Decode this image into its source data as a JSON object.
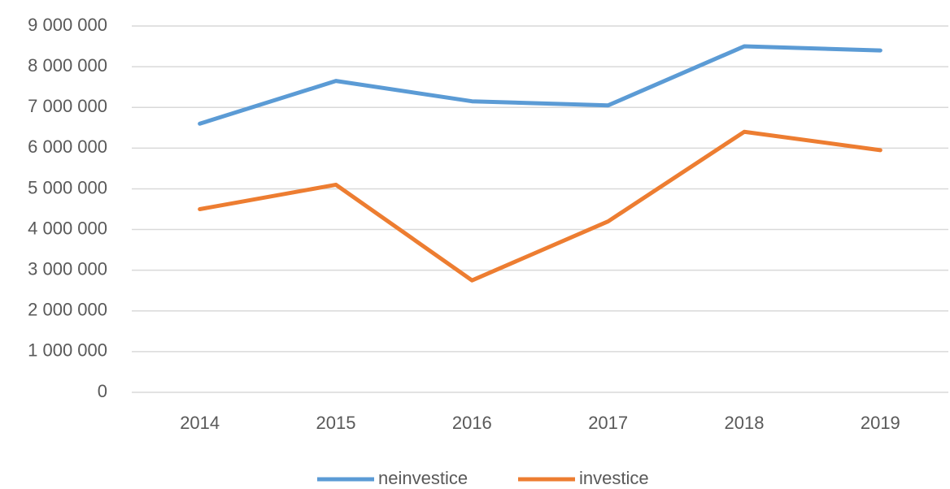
{
  "chart_data": {
    "type": "line",
    "categories": [
      "2014",
      "2015",
      "2016",
      "2017",
      "2018",
      "2019"
    ],
    "series": [
      {
        "name": "neinvestice",
        "color": "#5b9bd5",
        "values": [
          6600000,
          7650000,
          7150000,
          7050000,
          8500000,
          8400000
        ]
      },
      {
        "name": "investice",
        "color": "#ed7d31",
        "values": [
          4500000,
          5100000,
          2750000,
          4200000,
          6400000,
          5950000
        ]
      }
    ],
    "ylim": [
      0,
      9000000
    ],
    "yticks": [
      0,
      {
        "value": 1000000,
        "label": "1 000 000"
      },
      {
        "value": 2000000,
        "label": "2 000 000"
      },
      {
        "value": 3000000,
        "label": "3 000 000"
      },
      {
        "value": 4000000,
        "label": "4 000 000"
      },
      {
        "value": 5000000,
        "label": "5 000 000"
      },
      {
        "value": 6000000,
        "label": "6 000 000"
      },
      {
        "value": 7000000,
        "label": "7 000 000"
      },
      {
        "value": 8000000,
        "label": "8 000 000"
      },
      {
        "value": 9000000,
        "label": "9 000 000"
      }
    ],
    "grid": true,
    "legend": "bottom"
  }
}
